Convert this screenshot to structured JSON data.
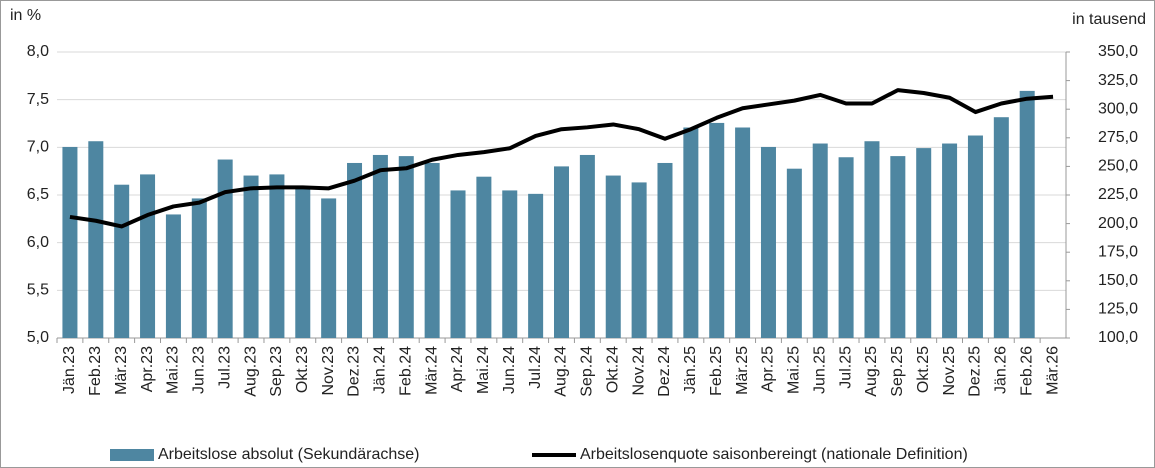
{
  "chart_data": {
    "type": "bar_line",
    "y_label": "in %",
    "y2_label": "in tausend",
    "categories": [
      "Jän.23",
      "Feb.23",
      "Mär.23",
      "Apr.23",
      "Mai.23",
      "Jun.23",
      "Jul.23",
      "Aug.23",
      "Sep.23",
      "Okt.23",
      "Nov.23",
      "Dez.23",
      "Jän.24",
      "Feb.24",
      "Mär.24",
      "Apr.24",
      "Mai.24",
      "Jun.24",
      "Jul.24",
      "Aug.24",
      "Sep.24",
      "Okt.24",
      "Nov.24",
      "Dez.24",
      "Jän.25",
      "Feb.25",
      "Mär.25",
      "Apr.25",
      "Mai.25",
      "Jun.25",
      "Jul.25",
      "Aug.25",
      "Sep.25",
      "Okt.25",
      "Nov.25",
      "Dez.25",
      "Jän.26",
      "Feb.26",
      "Mär.26"
    ],
    "series": [
      {
        "name": "Arbeitslose absolut (Sekundärachse)",
        "type": "bar",
        "axis": "y2",
        "color": "#4e86a1",
        "values": [
          267,
          272,
          234,
          243,
          208,
          222,
          256,
          242,
          243,
          231,
          222,
          253,
          260,
          259,
          253,
          229,
          241,
          229,
          226,
          250,
          260,
          242,
          236,
          253,
          284,
          288,
          284,
          267,
          248,
          270,
          258,
          272,
          259,
          266,
          270,
          277,
          293,
          316,
          null
        ]
      },
      {
        "name": "Arbeitslosenquote saisonbereingt (nationale Definition)",
        "type": "line",
        "axis": "y",
        "color": "#000000",
        "values": [
          6.27,
          6.23,
          6.17,
          6.29,
          6.38,
          6.42,
          6.53,
          6.57,
          6.58,
          6.58,
          6.57,
          6.65,
          6.76,
          6.78,
          6.87,
          6.92,
          6.95,
          6.99,
          7.12,
          7.19,
          7.21,
          7.24,
          7.19,
          7.09,
          7.19,
          7.31,
          7.41,
          7.45,
          7.49,
          7.55,
          7.46,
          7.46,
          7.6,
          7.57,
          7.52,
          7.37,
          7.46,
          7.51,
          7.53
        ]
      }
    ],
    "ylim": [
      5,
      8
    ],
    "yticks": [
      {
        "value": 5,
        "label": "5,0"
      },
      {
        "value": 5.5,
        "label": "5,5"
      },
      {
        "value": 6,
        "label": "6,0"
      },
      {
        "value": 6.5,
        "label": "6,5"
      },
      {
        "value": 7,
        "label": "7,0"
      },
      {
        "value": 7.5,
        "label": "7,5"
      },
      {
        "value": 8,
        "label": "8,0"
      }
    ],
    "y2lim": [
      100,
      350
    ],
    "y2ticks": [
      {
        "value": 100,
        "label": "100,0"
      },
      {
        "value": 125,
        "label": "125,0"
      },
      {
        "value": 150,
        "label": "150,0"
      },
      {
        "value": 175,
        "label": "175,0"
      },
      {
        "value": 200,
        "label": "200,0"
      },
      {
        "value": 225,
        "label": "225,0"
      },
      {
        "value": 250,
        "label": "250,0"
      },
      {
        "value": 275,
        "label": "275,0"
      },
      {
        "value": 300,
        "label": "300,0"
      },
      {
        "value": 325,
        "label": "325,0"
      },
      {
        "value": 350,
        "label": "350,0"
      }
    ],
    "grid": true,
    "legend": "bottom"
  }
}
